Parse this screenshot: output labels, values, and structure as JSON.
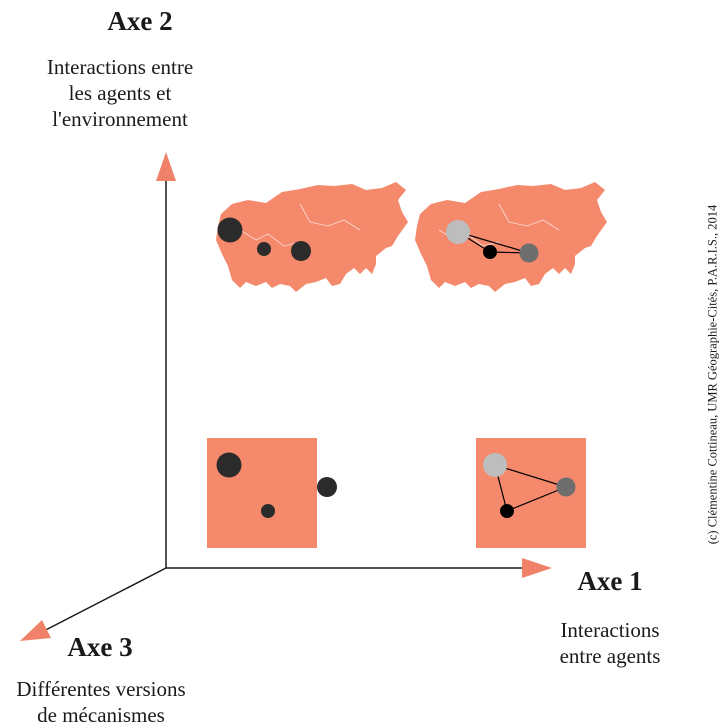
{
  "axes": {
    "axis2": {
      "title": "Axe 2",
      "lines": [
        "Interactions entre",
        "les agents et",
        "l'environnement"
      ]
    },
    "axis1": {
      "title": "Axe 1",
      "lines": [
        "Interactions",
        "entre agents"
      ]
    },
    "axis3": {
      "title": "Axe 3",
      "lines": [
        "Différentes versions",
        "de mécanismes"
      ]
    }
  },
  "credit": "(c) Clémentine Cottineau, UMR Géographie-Cités, P.A.R.I.S., 2014",
  "colors": {
    "axis_line": "#1a1a1a",
    "arrow": "#f0826a",
    "territory": "#f4896c",
    "dark_agent": "#2b2b2b",
    "light_agent": "#bdbdbd",
    "mid_agent": "#6e6e6e",
    "black_agent": "#000000"
  },
  "panels": [
    {
      "id": "map-no-interaction",
      "shape": "map",
      "connected": false
    },
    {
      "id": "map-with-interaction",
      "shape": "map",
      "connected": true
    },
    {
      "id": "square-no-interaction",
      "shape": "square",
      "connected": false
    },
    {
      "id": "square-with-interaction",
      "shape": "square",
      "connected": true
    }
  ]
}
